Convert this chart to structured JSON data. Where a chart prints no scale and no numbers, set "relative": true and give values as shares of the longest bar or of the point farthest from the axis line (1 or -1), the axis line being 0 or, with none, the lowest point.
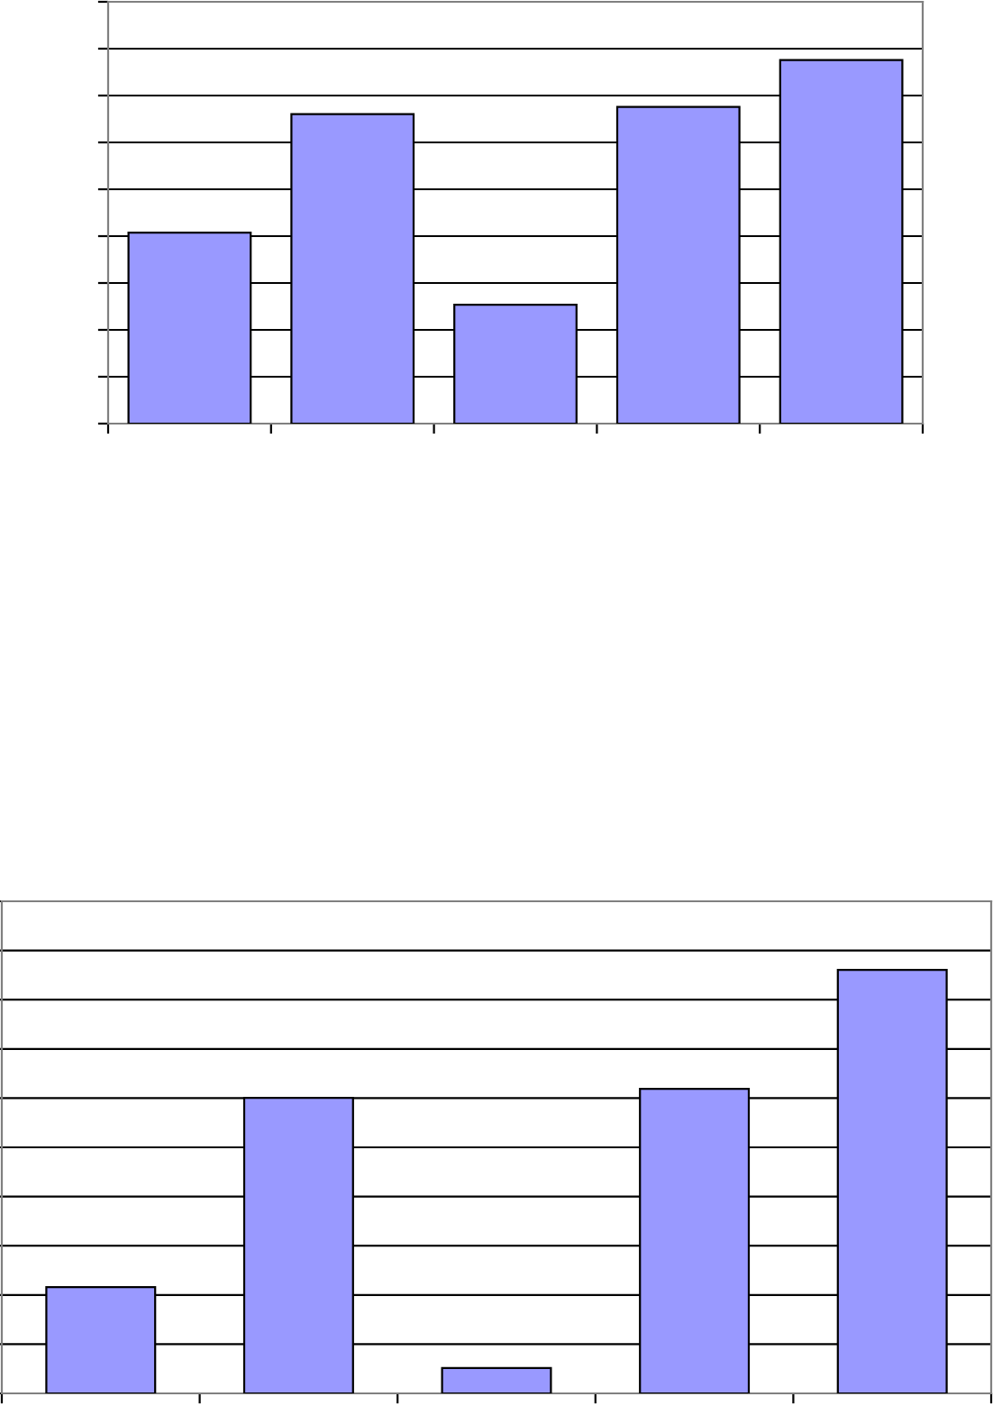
{
  "chart_data": [
    {
      "type": "bar",
      "relative": true,
      "grid": "y",
      "categories": [
        null,
        null,
        null,
        null,
        null
      ],
      "series": [
        {
          "color": "#9999ff",
          "values": [
            0.525,
            0.851,
            0.327,
            0.871,
            1
          ]
        }
      ]
    },
    {
      "type": "bar",
      "relative": true,
      "grid": "y",
      "categories": [
        null,
        null,
        null,
        null,
        null
      ],
      "series": [
        {
          "color": "#9999ff",
          "values": [
            0.251,
            0.698,
            0.06,
            0.719,
            1
          ]
        }
      ]
    }
  ]
}
